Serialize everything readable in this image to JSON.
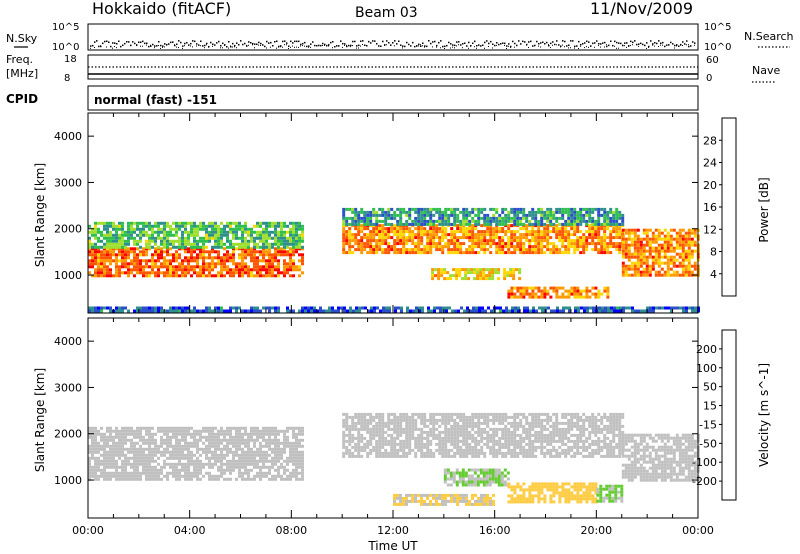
{
  "header": {
    "station": "Hokkaido (fitACF)",
    "beam": "Beam 03",
    "date": "11/Nov/2009",
    "program": "normal (fast) -151"
  },
  "strips": {
    "nsky_label": "N.Sky",
    "nsearch_label": "N.Search",
    "freq_label_1": "Freq.",
    "freq_label_2": "[MHz]",
    "nave_label": "Nave",
    "cpid_label": "CPID",
    "noise_ticks": [
      "10^5",
      "10^0"
    ],
    "freq_ticks": [
      "18",
      "8"
    ],
    "nave_ticks": [
      "60",
      "0"
    ]
  },
  "colors": {
    "power": [
      "#0000ff",
      "#2a4fc8",
      "#2f8f8f",
      "#2fbf4f",
      "#9fdf2f",
      "#ffd700",
      "#ff9900",
      "#ff5500",
      "#ff0000"
    ],
    "velocity": [
      "#ff0000",
      "#ff5500",
      "#ff9900",
      "#ffcc44",
      "#c0c0c0",
      "#66cc33",
      "#339933",
      "#2e4fb0",
      "#2020cc"
    ]
  },
  "chart_data": [
    {
      "type": "heatmap",
      "title": "",
      "xlabel": "",
      "ylabel": "Slant Range [km]",
      "xlim": [
        "00:00",
        "24:00"
      ],
      "ylim": [
        180,
        4500
      ],
      "yticks": [
        1000,
        2000,
        3000,
        4000
      ],
      "colorbar": {
        "label": "Power [dB]",
        "ticks": [
          4,
          8,
          12,
          16,
          20,
          24,
          28
        ],
        "range": [
          0,
          32
        ]
      },
      "bands": [
        {
          "t0": 0.0,
          "t1": 8.4,
          "r0": 1000,
          "r1": 1600,
          "value": 26
        },
        {
          "t0": 0.0,
          "t1": 8.4,
          "r0": 1600,
          "r1": 2150,
          "value": 13
        },
        {
          "t0": 10.0,
          "t1": 21.0,
          "r0": 1500,
          "r1": 2100,
          "value": 24
        },
        {
          "t0": 10.0,
          "t1": 21.0,
          "r0": 2100,
          "r1": 2450,
          "value": 10
        },
        {
          "t0": 13.5,
          "t1": 17.0,
          "r0": 950,
          "r1": 1150,
          "value": 20
        },
        {
          "t0": 16.5,
          "t1": 20.5,
          "r0": 500,
          "r1": 750,
          "value": 24
        },
        {
          "t0": 21.0,
          "t1": 24.0,
          "r0": 1000,
          "r1": 2000,
          "value": 24
        },
        {
          "t0": 0.0,
          "t1": 24.0,
          "r0": 200,
          "r1": 320,
          "value": 6
        }
      ]
    },
    {
      "type": "heatmap",
      "title": "",
      "xlabel": "Time UT",
      "ylabel": "Slant Range [km]",
      "xlim": [
        "00:00",
        "24:00"
      ],
      "ylim": [
        180,
        4500
      ],
      "yticks": [
        1000,
        2000,
        3000,
        4000
      ],
      "xticks": [
        "00:00",
        "04:00",
        "08:00",
        "12:00",
        "16:00",
        "20:00",
        "00:00"
      ],
      "colorbar": {
        "label": "Velocity [m s^-1]",
        "ticks": [
          200,
          100,
          50,
          15,
          -15,
          -50,
          -100,
          -200
        ],
        "range": [
          -250,
          250
        ]
      },
      "bands": [
        {
          "t0": 0.0,
          "t1": 8.4,
          "r0": 1000,
          "r1": 2150,
          "value": 0
        },
        {
          "t0": 10.0,
          "t1": 21.0,
          "r0": 1500,
          "r1": 2450,
          "value": 0
        },
        {
          "t0": 14.0,
          "t1": 16.5,
          "r0": 900,
          "r1": 1250,
          "value": 30
        },
        {
          "t0": 16.5,
          "t1": 20.0,
          "r0": 500,
          "r1": 950,
          "value": -60
        },
        {
          "t0": 12.0,
          "t1": 16.0,
          "r0": 500,
          "r1": 700,
          "value": -30
        },
        {
          "t0": 20.0,
          "t1": 21.0,
          "r0": 550,
          "r1": 900,
          "value": 30
        },
        {
          "t0": 21.0,
          "t1": 24.0,
          "r0": 1000,
          "r1": 2000,
          "value": 0
        }
      ]
    }
  ]
}
